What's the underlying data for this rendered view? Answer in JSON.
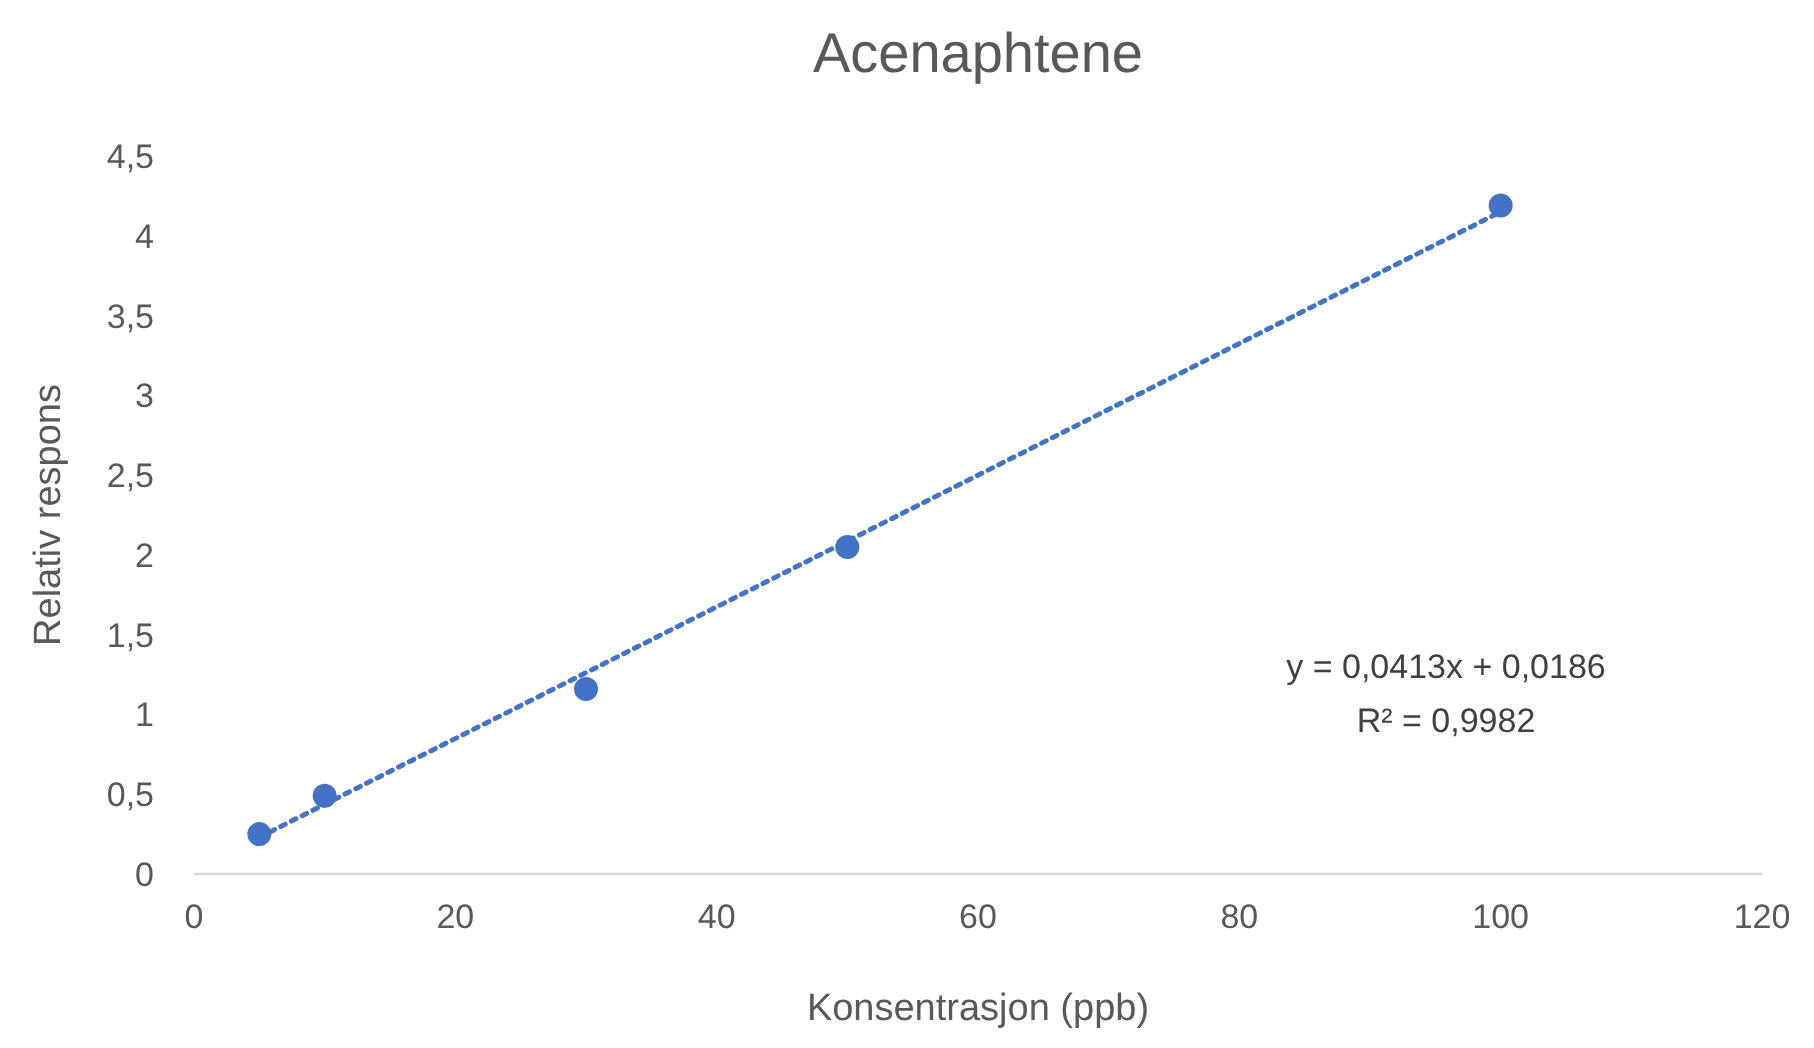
{
  "chart_data": {
    "type": "scatter",
    "title": "Acenaphtene",
    "xlabel": "Konsentrasjon (ppb)",
    "ylabel": "Relativ respons",
    "xlim": [
      0,
      120
    ],
    "xticks": [
      0,
      20,
      40,
      60,
      80,
      100,
      120
    ],
    "ylim": [
      0,
      4.5
    ],
    "yticks": [
      0,
      {
        "value": 0.5,
        "label": "0,5"
      },
      1,
      {
        "value": 1.5,
        "label": "1,5"
      },
      2,
      {
        "value": 2.5,
        "label": "2,5"
      },
      3,
      {
        "value": 3.5,
        "label": "3,5"
      },
      4,
      {
        "value": 4.5,
        "label": "4,5"
      }
    ],
    "grid": false,
    "marker": "circle",
    "series": [
      {
        "color": "#4472c4",
        "x": [
          5,
          10,
          30,
          50,
          100
        ],
        "values": [
          0.25,
          0.49,
          1.16,
          2.05,
          4.19
        ]
      },
      {
        "type": "line",
        "color": "#4472c4",
        "x": [
          5,
          100
        ],
        "values": [
          0.23,
          4.15
        ],
        "line_style": "dotted",
        "marker": "none"
      }
    ],
    "annotations": [
      "y = 0,0413x + 0,0186",
      "R² = 0,9982"
    ]
  }
}
